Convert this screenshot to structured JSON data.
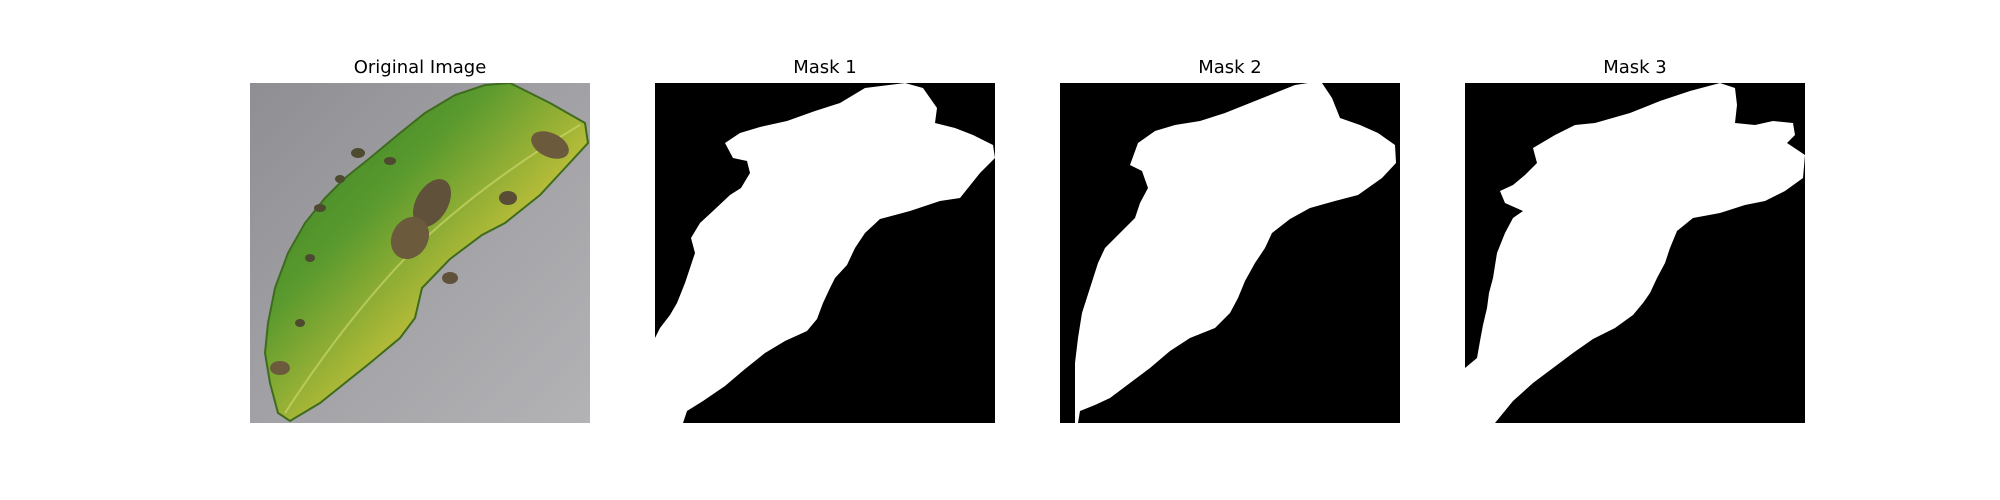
{
  "panels": [
    {
      "title": "Original Image",
      "kind": "photo"
    },
    {
      "title": "Mask 1",
      "kind": "mask"
    },
    {
      "title": "Mask 2",
      "kind": "mask"
    },
    {
      "title": "Mask 3",
      "kind": "mask"
    }
  ],
  "colors": {
    "background": "#ffffff",
    "mask_background": "#000000",
    "mask_foreground": "#ffffff",
    "surface_gray": "#9c9ca0",
    "leaf_green": "#3f8a2a",
    "leaf_yellow": "#c3c238",
    "lesion_brown": "#6b5a3c"
  }
}
